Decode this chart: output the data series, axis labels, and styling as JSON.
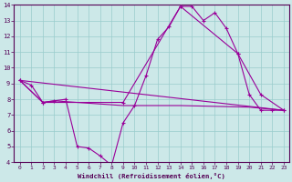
{
  "xlabel": "Windchill (Refroidissement éolien,°C)",
  "background_color": "#cce8e8",
  "line_color": "#990099",
  "grid_color": "#99cccc",
  "xlim": [
    -0.5,
    23.5
  ],
  "ylim": [
    4,
    14
  ],
  "xticks": [
    0,
    1,
    2,
    3,
    4,
    5,
    6,
    7,
    8,
    9,
    10,
    11,
    12,
    13,
    14,
    15,
    16,
    17,
    18,
    19,
    20,
    21,
    22,
    23
  ],
  "yticks": [
    4,
    5,
    6,
    7,
    8,
    9,
    10,
    11,
    12,
    13,
    14
  ],
  "series": [
    {
      "x": [
        0,
        1,
        2,
        3,
        4,
        5,
        6,
        7,
        8,
        9,
        10,
        11,
        12,
        13,
        14,
        15,
        16,
        17,
        18,
        19,
        20,
        21,
        22,
        23
      ],
      "y": [
        9.2,
        8.9,
        7.8,
        7.9,
        8.0,
        5.0,
        4.9,
        4.4,
        3.8,
        6.5,
        7.6,
        9.5,
        11.8,
        12.6,
        13.9,
        13.9,
        13.0,
        13.5,
        12.5,
        10.9,
        8.3,
        7.3,
        7.3,
        7.3
      ],
      "marker": true
    },
    {
      "x": [
        0,
        2,
        9,
        14,
        19,
        21,
        23
      ],
      "y": [
        9.2,
        7.8,
        7.8,
        13.9,
        10.9,
        8.3,
        7.3
      ],
      "marker": true
    },
    {
      "x": [
        0,
        23
      ],
      "y": [
        9.2,
        7.3
      ],
      "marker": false
    },
    {
      "x": [
        0,
        2,
        3,
        9,
        14,
        20,
        23
      ],
      "y": [
        9.2,
        7.8,
        7.9,
        7.6,
        7.6,
        7.5,
        7.3
      ],
      "marker": false
    }
  ]
}
